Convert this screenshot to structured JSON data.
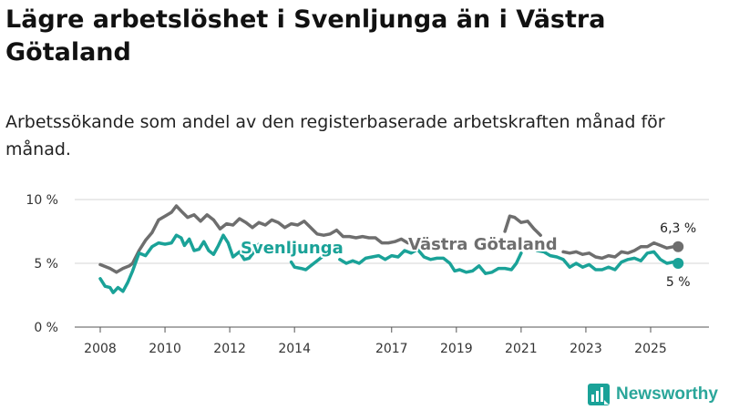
{
  "title": "Lägre arbetslöshet i Svenljunga än i Västra Götaland",
  "subtitle": "Arbetssökande som andel av den registerbaserade arbetskraften månad för månad.",
  "brand": "Newsworthy",
  "colors": {
    "svenljunga": "#1aa298",
    "vastra": "#6e6e6e",
    "grid": "#d6d6d6",
    "text": "#222222"
  },
  "chart_data": {
    "type": "line",
    "title": "Lägre arbetslöshet i Svenljunga än i Västra Götaland",
    "xlabel": "",
    "ylabel": "",
    "xlim": [
      2007.6,
      2026.4
    ],
    "ylim": [
      0,
      10
    ],
    "yticks": [
      0,
      5,
      10
    ],
    "ytick_labels": [
      "0 %",
      "5 %",
      "10 %"
    ],
    "xticks": [
      2008,
      2010,
      2012,
      2014,
      2017,
      2019,
      2021,
      2023,
      2025
    ],
    "xtick_labels": [
      "2008",
      "2010",
      "2012",
      "2014",
      "2017",
      "2019",
      "2021",
      "2023",
      "2025"
    ],
    "grid": true,
    "series": [
      {
        "name": "Västra Götaland",
        "label": "Västra Götaland",
        "end_label": "6,3 %",
        "points": [
          [
            2008.0,
            4.9
          ],
          [
            2008.3,
            4.6
          ],
          [
            2008.5,
            4.3
          ],
          [
            2008.7,
            4.6
          ],
          [
            2008.9,
            4.8
          ],
          [
            2009.0,
            5.0
          ],
          [
            2009.2,
            6.0
          ],
          [
            2009.4,
            6.8
          ],
          [
            2009.6,
            7.4
          ],
          [
            2009.8,
            8.4
          ],
          [
            2010.0,
            8.7
          ],
          [
            2010.2,
            9.0
          ],
          [
            2010.35,
            9.5
          ],
          [
            2010.5,
            9.1
          ],
          [
            2010.7,
            8.6
          ],
          [
            2010.9,
            8.8
          ],
          [
            2011.1,
            8.3
          ],
          [
            2011.3,
            8.8
          ],
          [
            2011.5,
            8.4
          ],
          [
            2011.7,
            7.7
          ],
          [
            2011.9,
            8.1
          ],
          [
            2012.1,
            8.0
          ],
          [
            2012.3,
            8.5
          ],
          [
            2012.5,
            8.2
          ],
          [
            2012.7,
            7.8
          ],
          [
            2012.9,
            8.2
          ],
          [
            2013.1,
            8.0
          ],
          [
            2013.3,
            8.4
          ],
          [
            2013.5,
            8.2
          ],
          [
            2013.7,
            7.8
          ],
          [
            2013.9,
            8.1
          ],
          [
            2014.1,
            8.0
          ],
          [
            2014.3,
            8.3
          ],
          [
            2014.5,
            7.8
          ],
          [
            2014.7,
            7.3
          ],
          [
            2014.9,
            7.2
          ],
          [
            2015.1,
            7.3
          ],
          [
            2015.3,
            7.6
          ],
          [
            2015.5,
            7.1
          ],
          [
            2015.7,
            7.1
          ],
          [
            2015.9,
            7.0
          ],
          [
            2016.1,
            7.1
          ],
          [
            2016.3,
            7.0
          ],
          [
            2016.5,
            7.0
          ],
          [
            2016.7,
            6.6
          ],
          [
            2016.9,
            6.6
          ],
          [
            2017.1,
            6.7
          ],
          [
            2017.3,
            6.9
          ],
          [
            2017.5,
            6.6
          ]
        ],
        "points_b": [
          [
            2020.5,
            7.5
          ],
          [
            2020.65,
            8.7
          ],
          [
            2020.8,
            8.6
          ],
          [
            2021.0,
            8.2
          ],
          [
            2021.2,
            8.3
          ],
          [
            2021.4,
            7.7
          ],
          [
            2021.6,
            7.2
          ]
        ],
        "points_c": [
          [
            2022.3,
            5.9
          ],
          [
            2022.5,
            5.8
          ],
          [
            2022.7,
            5.9
          ],
          [
            2022.9,
            5.7
          ],
          [
            2023.1,
            5.8
          ],
          [
            2023.3,
            5.5
          ],
          [
            2023.5,
            5.4
          ],
          [
            2023.7,
            5.6
          ],
          [
            2023.9,
            5.5
          ],
          [
            2024.1,
            5.9
          ],
          [
            2024.3,
            5.8
          ],
          [
            2024.5,
            6.0
          ],
          [
            2024.7,
            6.3
          ],
          [
            2024.9,
            6.3
          ],
          [
            2025.1,
            6.6
          ],
          [
            2025.3,
            6.4
          ],
          [
            2025.5,
            6.2
          ],
          [
            2025.7,
            6.3
          ],
          [
            2025.85,
            6.3
          ]
        ]
      },
      {
        "name": "Svenljunga",
        "label": "Svenljunga",
        "end_label": "5 %",
        "points": [
          [
            2008.0,
            3.8
          ],
          [
            2008.15,
            3.2
          ],
          [
            2008.3,
            3.1
          ],
          [
            2008.4,
            2.7
          ],
          [
            2008.55,
            3.1
          ],
          [
            2008.7,
            2.8
          ],
          [
            2008.85,
            3.5
          ],
          [
            2009.0,
            4.4
          ],
          [
            2009.2,
            5.8
          ],
          [
            2009.4,
            5.6
          ],
          [
            2009.6,
            6.3
          ],
          [
            2009.8,
            6.6
          ],
          [
            2010.0,
            6.5
          ],
          [
            2010.2,
            6.6
          ],
          [
            2010.35,
            7.2
          ],
          [
            2010.5,
            7.0
          ],
          [
            2010.6,
            6.4
          ],
          [
            2010.75,
            6.9
          ],
          [
            2010.9,
            6.0
          ],
          [
            2011.05,
            6.1
          ],
          [
            2011.2,
            6.7
          ],
          [
            2011.35,
            6.0
          ],
          [
            2011.5,
            5.7
          ],
          [
            2011.65,
            6.4
          ],
          [
            2011.8,
            7.2
          ],
          [
            2011.95,
            6.6
          ],
          [
            2012.1,
            5.5
          ],
          [
            2012.3,
            5.9
          ],
          [
            2012.45,
            5.3
          ],
          [
            2012.6,
            5.4
          ],
          [
            2012.75,
            5.9
          ],
          [
            2012.9,
            6.5
          ],
          [
            2013.0,
            6.3
          ]
        ],
        "points_b": [
          [
            2013.9,
            5.1
          ],
          [
            2014.0,
            4.7
          ],
          [
            2014.2,
            4.6
          ],
          [
            2014.35,
            4.5
          ],
          [
            2014.5,
            4.8
          ],
          [
            2014.7,
            5.2
          ],
          [
            2014.85,
            5.5
          ]
        ],
        "points_c": [
          [
            2015.4,
            5.3
          ],
          [
            2015.6,
            5.0
          ],
          [
            2015.8,
            5.2
          ],
          [
            2016.0,
            5.0
          ],
          [
            2016.2,
            5.4
          ],
          [
            2016.4,
            5.5
          ],
          [
            2016.6,
            5.6
          ],
          [
            2016.8,
            5.3
          ],
          [
            2017.0,
            5.6
          ],
          [
            2017.2,
            5.5
          ],
          [
            2017.4,
            6.0
          ],
          [
            2017.6,
            5.8
          ],
          [
            2017.8,
            6.1
          ],
          [
            2018.0,
            5.5
          ],
          [
            2018.2,
            5.3
          ],
          [
            2018.4,
            5.4
          ],
          [
            2018.6,
            5.4
          ],
          [
            2018.8,
            5.0
          ],
          [
            2018.95,
            4.4
          ],
          [
            2019.1,
            4.5
          ],
          [
            2019.3,
            4.3
          ],
          [
            2019.5,
            4.4
          ],
          [
            2019.7,
            4.8
          ],
          [
            2019.9,
            4.2
          ],
          [
            2020.1,
            4.3
          ],
          [
            2020.3,
            4.6
          ],
          [
            2020.5,
            4.6
          ],
          [
            2020.7,
            4.5
          ],
          [
            2020.85,
            5.0
          ],
          [
            2021.0,
            5.8
          ]
        ],
        "points_d": [
          [
            2021.5,
            6.0
          ],
          [
            2021.7,
            5.9
          ],
          [
            2021.9,
            5.6
          ],
          [
            2022.1,
            5.5
          ],
          [
            2022.3,
            5.3
          ],
          [
            2022.5,
            4.7
          ],
          [
            2022.7,
            5.0
          ],
          [
            2022.9,
            4.7
          ],
          [
            2023.1,
            4.9
          ],
          [
            2023.3,
            4.5
          ],
          [
            2023.5,
            4.5
          ],
          [
            2023.7,
            4.7
          ],
          [
            2023.9,
            4.5
          ],
          [
            2024.1,
            5.1
          ],
          [
            2024.3,
            5.3
          ],
          [
            2024.5,
            5.4
          ],
          [
            2024.7,
            5.2
          ],
          [
            2024.9,
            5.8
          ],
          [
            2025.1,
            5.9
          ],
          [
            2025.3,
            5.3
          ],
          [
            2025.5,
            5.0
          ],
          [
            2025.7,
            5.1
          ],
          [
            2025.85,
            5.0
          ]
        ]
      }
    ]
  }
}
